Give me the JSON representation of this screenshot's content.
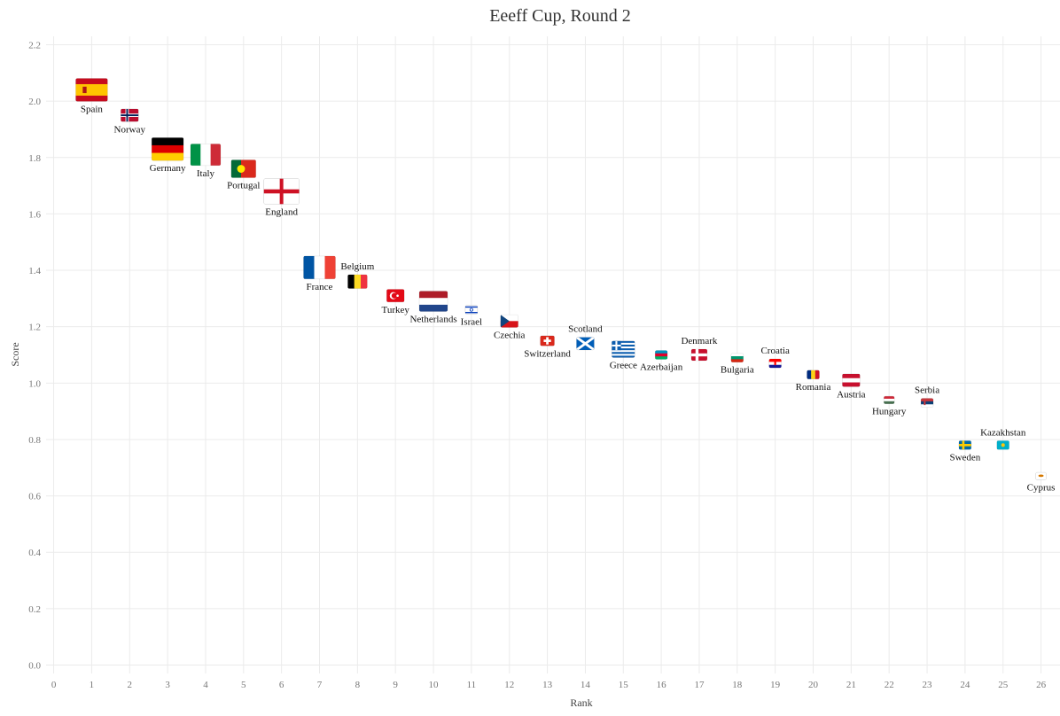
{
  "chart_data": {
    "type": "scatter",
    "title": "Eeeff  Cup, Round 2",
    "xlabel": "Rank",
    "ylabel": "Score",
    "xlim": [
      -0.2,
      26.5
    ],
    "ylim": [
      -0.03,
      2.23
    ],
    "xticks": [
      "0",
      "1",
      "2",
      "3",
      "4",
      "5",
      "6",
      "7",
      "8",
      "9",
      "10",
      "11",
      "12",
      "13",
      "14",
      "15",
      "16",
      "17",
      "18",
      "19",
      "20",
      "21",
      "22",
      "23",
      "24",
      "25",
      "26"
    ],
    "yticks": [
      "0.0",
      "0.2",
      "0.4",
      "0.6",
      "0.8",
      "1.0",
      "1.2",
      "1.4",
      "1.6",
      "1.8",
      "2.0",
      "2.2"
    ],
    "grid": true,
    "legend": "none",
    "marker": "country flag",
    "points": [
      {
        "label": "Spain",
        "x": 1,
        "y": 2.04,
        "size": 36,
        "flag": "spain",
        "label_pos": "below"
      },
      {
        "label": "Norway",
        "x": 2,
        "y": 1.95,
        "size": 20,
        "flag": "norway",
        "label_pos": "below"
      },
      {
        "label": "Germany",
        "x": 3,
        "y": 1.83,
        "size": 36,
        "flag": "germany",
        "label_pos": "below"
      },
      {
        "label": "Italy",
        "x": 4,
        "y": 1.81,
        "size": 34,
        "flag": "italy",
        "label_pos": "below"
      },
      {
        "label": "Portugal",
        "x": 5,
        "y": 1.76,
        "size": 28,
        "flag": "portugal",
        "label_pos": "below"
      },
      {
        "label": "England",
        "x": 6,
        "y": 1.68,
        "size": 40,
        "flag": "england",
        "label_pos": "below"
      },
      {
        "label": "France",
        "x": 7,
        "y": 1.41,
        "size": 36,
        "flag": "france",
        "label_pos": "below"
      },
      {
        "label": "Belgium",
        "x": 8,
        "y": 1.36,
        "size": 22,
        "flag": "belgium",
        "label_pos": "above"
      },
      {
        "label": "Turkey",
        "x": 9,
        "y": 1.31,
        "size": 20,
        "flag": "turkey",
        "label_pos": "below"
      },
      {
        "label": "Netherlands",
        "x": 10,
        "y": 1.29,
        "size": 32,
        "flag": "netherlands",
        "label_pos": "below"
      },
      {
        "label": "Israel",
        "x": 11,
        "y": 1.26,
        "size": 14,
        "flag": "israel",
        "label_pos": "below"
      },
      {
        "label": "Czechia",
        "x": 12,
        "y": 1.22,
        "size": 20,
        "flag": "czechia",
        "label_pos": "below"
      },
      {
        "label": "Switzerland",
        "x": 13,
        "y": 1.15,
        "size": 16,
        "flag": "switzerland",
        "label_pos": "below"
      },
      {
        "label": "Scotland",
        "x": 14,
        "y": 1.14,
        "size": 20,
        "flag": "scotland",
        "label_pos": "above"
      },
      {
        "label": "Greece",
        "x": 15,
        "y": 1.12,
        "size": 26,
        "flag": "greece",
        "label_pos": "below"
      },
      {
        "label": "Azerbaijan",
        "x": 16,
        "y": 1.1,
        "size": 14,
        "flag": "azerbaijan",
        "label_pos": "below"
      },
      {
        "label": "Denmark",
        "x": 17,
        "y": 1.1,
        "size": 18,
        "flag": "denmark",
        "label_pos": "above"
      },
      {
        "label": "Bulgaria",
        "x": 18,
        "y": 1.09,
        "size": 14,
        "flag": "bulgaria",
        "label_pos": "below"
      },
      {
        "label": "Croatia",
        "x": 19,
        "y": 1.07,
        "size": 14,
        "flag": "croatia",
        "label_pos": "above"
      },
      {
        "label": "Romania",
        "x": 20,
        "y": 1.03,
        "size": 14,
        "flag": "romania",
        "label_pos": "below"
      },
      {
        "label": "Austria",
        "x": 21,
        "y": 1.01,
        "size": 20,
        "flag": "austria",
        "label_pos": "below"
      },
      {
        "label": "Hungary",
        "x": 22,
        "y": 0.94,
        "size": 12,
        "flag": "hungary",
        "label_pos": "below"
      },
      {
        "label": "Serbia",
        "x": 23,
        "y": 0.93,
        "size": 14,
        "flag": "serbia",
        "label_pos": "above"
      },
      {
        "label": "Sweden",
        "x": 24,
        "y": 0.78,
        "size": 14,
        "flag": "sweden",
        "label_pos": "below"
      },
      {
        "label": "Kazakhstan",
        "x": 25,
        "y": 0.78,
        "size": 14,
        "flag": "kazakhstan",
        "label_pos": "above"
      },
      {
        "label": "Cyprus",
        "x": 26,
        "y": 0.67,
        "size": 12,
        "flag": "cyprus",
        "label_pos": "below"
      }
    ]
  }
}
